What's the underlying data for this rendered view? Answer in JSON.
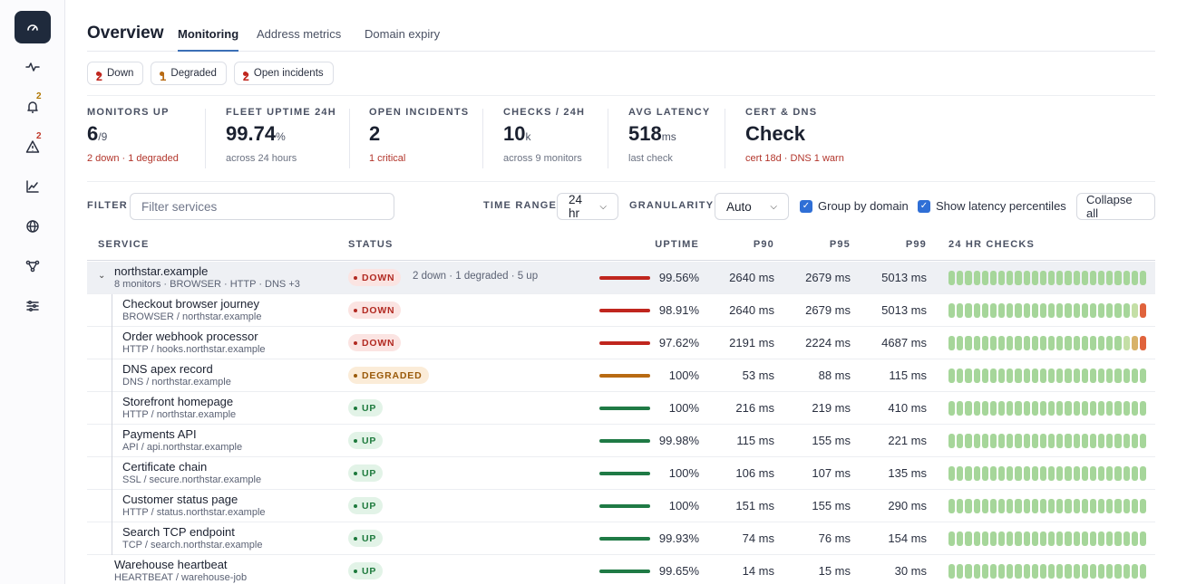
{
  "sidebar": {
    "icons": [
      {
        "name": "dashboard-gauge-icon",
        "active": true
      },
      {
        "name": "pulse-icon"
      },
      {
        "name": "bell-icon",
        "badge": "2",
        "badge_tone": "amber"
      },
      {
        "name": "warning-icon",
        "badge": "2",
        "badge_tone": "red"
      },
      {
        "name": "chart-line-icon"
      },
      {
        "name": "globe-icon"
      },
      {
        "name": "network-icon"
      },
      {
        "name": "settings-sliders-icon"
      }
    ]
  },
  "header": {
    "title": "Overview",
    "tabs": [
      {
        "label": "Monitoring",
        "active": true
      },
      {
        "label": "Address metrics"
      },
      {
        "label": "Domain expiry"
      }
    ]
  },
  "chips": [
    {
      "count": "2",
      "label": "Down",
      "color": "#c0261e"
    },
    {
      "count": "1",
      "label": "Degraded",
      "color": "#b86a12"
    },
    {
      "count": "2",
      "label": "Open incidents",
      "color": "#c0261e"
    }
  ],
  "stats": [
    {
      "label": "MONITORS UP",
      "value": "6",
      "unit": "/9",
      "sub": "2 down · 1 degraded",
      "sub_tone": "red"
    },
    {
      "label": "FLEET UPTIME 24H",
      "value": "99.74",
      "unit": "%",
      "sub": "across 24 hours"
    },
    {
      "label": "OPEN INCIDENTS",
      "value": "2",
      "unit": "",
      "sub": "1 critical",
      "sub_tone": "red"
    },
    {
      "label": "CHECKS / 24H",
      "value": "10",
      "unit": "k",
      "sub": "across 9 monitors"
    },
    {
      "label": "AVG LATENCY",
      "value": "518",
      "unit": "ms",
      "sub": "last check"
    },
    {
      "label": "CERT & DNS",
      "value": "Check",
      "unit": "",
      "sub": "cert 18d · DNS 1 warn",
      "sub_tone": "red"
    }
  ],
  "filters": {
    "filter_label": "FILTER",
    "filter_placeholder": "Filter services",
    "time_range_label": "TIME RANGE",
    "time_range_value": "24 hr",
    "granularity_label": "GRANULARITY",
    "granularity_value": "Auto",
    "group_by_domain": {
      "label": "Group by domain",
      "checked": true
    },
    "show_latency": {
      "label": "Show latency percentiles",
      "checked": true
    },
    "collapse_all": "Collapse all"
  },
  "table": {
    "columns": {
      "service": "SERVICE",
      "status": "STATUS",
      "uptime": "UPTIME",
      "p90": "P90",
      "p95": "P95",
      "p99": "P99",
      "checks": "24 HR CHECKS"
    },
    "rows": [
      {
        "kind": "group",
        "name": "northstar.example",
        "sub": "8 monitors · BROWSER · HTTP · DNS +3",
        "status": "DOWN",
        "tone": "down",
        "summary": "2 down · 1 degraded · 5 up",
        "uptime": "99.56%",
        "p90": "2640 ms",
        "p95": "2679 ms",
        "p99": "5013 ms",
        "checks": "all-ok"
      },
      {
        "kind": "child",
        "name": "Checkout browser journey",
        "sub": "BROWSER / northstar.example",
        "status": "DOWN",
        "tone": "down",
        "uptime": "98.91%",
        "p90": "2640 ms",
        "p95": "2679 ms",
        "p99": "5013 ms",
        "checks": "end-red"
      },
      {
        "kind": "child",
        "name": "Order webhook processor",
        "sub": "HTTP / hooks.northstar.example",
        "status": "DOWN",
        "tone": "down",
        "uptime": "97.62%",
        "p90": "2191 ms",
        "p95": "2224 ms",
        "p99": "4687 ms",
        "checks": "end-amber-red"
      },
      {
        "kind": "child",
        "name": "DNS apex record",
        "sub": "DNS / northstar.example",
        "status": "DEGRADED",
        "tone": "degraded",
        "uptime": "100%",
        "p90": "53 ms",
        "p95": "88 ms",
        "p99": "115 ms",
        "checks": "all-ok"
      },
      {
        "kind": "child",
        "name": "Storefront homepage",
        "sub": "HTTP / northstar.example",
        "status": "UP",
        "tone": "up",
        "uptime": "100%",
        "p90": "216 ms",
        "p95": "219 ms",
        "p99": "410 ms",
        "checks": "all-ok"
      },
      {
        "kind": "child",
        "name": "Payments API",
        "sub": "API / api.northstar.example",
        "status": "UP",
        "tone": "up",
        "uptime": "99.98%",
        "p90": "115 ms",
        "p95": "155 ms",
        "p99": "221 ms",
        "checks": "all-ok"
      },
      {
        "kind": "child",
        "name": "Certificate chain",
        "sub": "SSL / secure.northstar.example",
        "status": "UP",
        "tone": "up",
        "uptime": "100%",
        "p90": "106 ms",
        "p95": "107 ms",
        "p99": "135 ms",
        "checks": "all-ok"
      },
      {
        "kind": "child",
        "name": "Customer status page",
        "sub": "HTTP / status.northstar.example",
        "status": "UP",
        "tone": "up",
        "uptime": "100%",
        "p90": "151 ms",
        "p95": "155 ms",
        "p99": "290 ms",
        "checks": "all-ok"
      },
      {
        "kind": "child",
        "name": "Search TCP endpoint",
        "sub": "TCP / search.northstar.example",
        "status": "UP",
        "tone": "up",
        "uptime": "99.93%",
        "p90": "74 ms",
        "p95": "76 ms",
        "p99": "154 ms",
        "checks": "all-ok"
      },
      {
        "kind": "solo",
        "name": "Warehouse heartbeat",
        "sub": "HEARTBEAT / warehouse-job",
        "status": "UP",
        "tone": "up",
        "uptime": "99.65%",
        "p90": "14 ms",
        "p95": "15 ms",
        "p99": "30 ms",
        "checks": "all-ok"
      }
    ]
  }
}
